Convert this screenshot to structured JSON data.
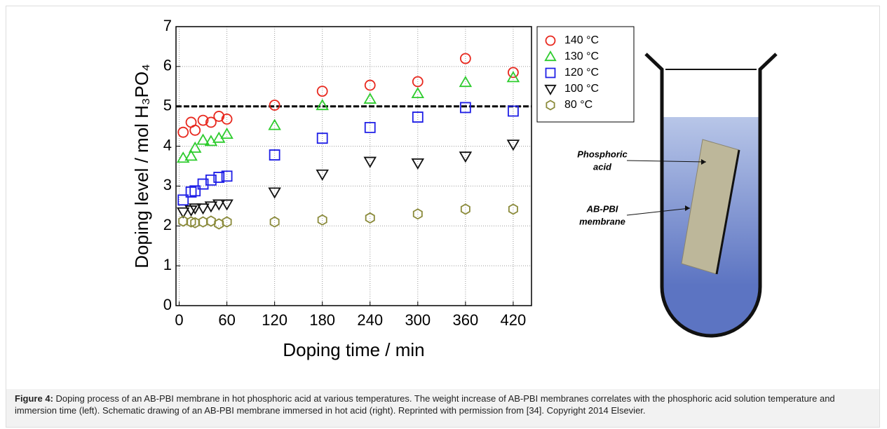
{
  "chart_data": {
    "type": "scatter",
    "xlabel": "Doping time / min",
    "ylabel": "Doping level / mol H₃PO₄",
    "xlim": [
      -4,
      443
    ],
    "ylim": [
      0,
      7
    ],
    "xticks": [
      0,
      60,
      120,
      180,
      240,
      300,
      360,
      420
    ],
    "yticks": [
      0,
      1,
      2,
      3,
      4,
      5,
      6,
      7
    ],
    "grid": true,
    "legend": "outside-right",
    "reference_line": 5,
    "x": [
      5,
      15,
      20,
      30,
      40,
      50,
      60,
      120,
      180,
      240,
      300,
      360,
      420
    ],
    "series": [
      {
        "name": "140 °C",
        "color": "#e8281e",
        "marker": "circle",
        "values": [
          4.35,
          4.6,
          4.4,
          4.65,
          4.6,
          4.75,
          4.68,
          5.03,
          5.38,
          5.53,
          5.62,
          6.2,
          5.85
        ]
      },
      {
        "name": "130 °C",
        "color": "#2ecc2e",
        "marker": "triangle-up",
        "values": [
          3.7,
          3.75,
          3.95,
          4.15,
          4.12,
          4.2,
          4.3,
          4.52,
          5.02,
          5.18,
          5.32,
          5.6,
          5.72
        ]
      },
      {
        "name": "120 °C",
        "color": "#1f1fe6",
        "marker": "square",
        "values": [
          2.65,
          2.85,
          2.88,
          3.05,
          3.15,
          3.22,
          3.25,
          3.78,
          4.2,
          4.47,
          4.73,
          4.97,
          4.88
        ]
      },
      {
        "name": "100 °C",
        "color": "#111111",
        "marker": "triangle-down",
        "values": [
          2.35,
          2.4,
          2.45,
          2.45,
          2.5,
          2.55,
          2.55,
          2.85,
          3.3,
          3.62,
          3.58,
          3.75,
          4.05
        ]
      },
      {
        "name": "80 °C",
        "color": "#8a8a3a",
        "marker": "hexagon",
        "values": [
          2.12,
          2.1,
          2.08,
          2.1,
          2.12,
          2.05,
          2.1,
          2.1,
          2.15,
          2.2,
          2.3,
          2.42,
          2.42
        ]
      }
    ]
  },
  "schematic": {
    "labels": [
      {
        "lines": [
          "Phosphoric",
          "acid"
        ]
      },
      {
        "lines": [
          "AB-PBI",
          "membrane"
        ]
      }
    ]
  },
  "caption": {
    "label": "Figure 4:",
    "text": "Doping process of an AB-PBI membrane in hot phosphoric acid at various temperatures. The weight increase of AB-PBI membranes correlates with the phosphoric acid solution temperature and immersion time (left). Schematic drawing of an AB-PBI membrane immersed in hot acid (right). Reprinted with permission from [34]. Copyright 2014 Elsevier."
  }
}
